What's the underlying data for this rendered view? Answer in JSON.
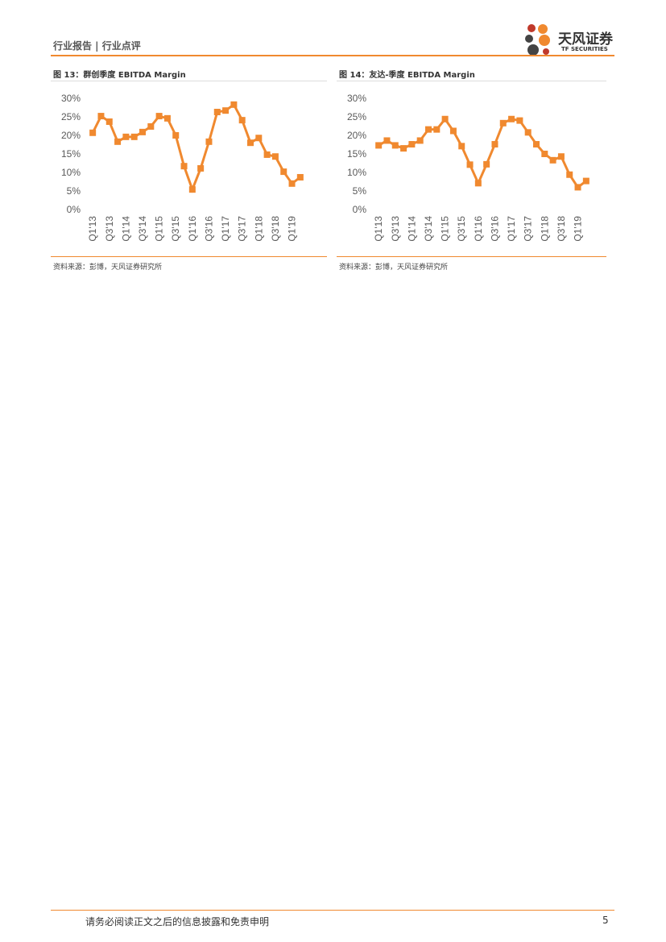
{
  "header": {
    "title": "行业报告 | 行业点评",
    "logo": "天风证券",
    "logo_en": "TF SECURITIES"
  },
  "chart_data": [
    {
      "type": "line",
      "title": "图 13：群创季度 EBITDA Margin",
      "source": "资料来源：彭博，天风证券研究所",
      "categories": [
        "Q1'13",
        null,
        "Q3'13",
        null,
        "Q1'14",
        null,
        "Q3'14",
        null,
        "Q1'15",
        null,
        "Q3'15",
        null,
        "Q1'16",
        null,
        "Q3'16",
        null,
        "Q1'17",
        null,
        "Q3'17",
        null,
        "Q1'18",
        null,
        "Q3'18",
        null,
        "Q1'19",
        null
      ],
      "values": [
        20.7,
        25.2,
        23.7,
        18.3,
        19.6,
        19.6,
        20.9,
        22.4,
        25.2,
        24.6,
        20.0,
        11.7,
        5.4,
        11.1,
        18.3,
        26.3,
        26.7,
        28.3,
        24.1,
        18.0,
        19.3,
        14.8,
        14.3,
        10.2,
        7.0,
        8.7
      ],
      "color": "#f0892f",
      "ylim": [
        0,
        30
      ],
      "yticks": [
        {
          "value": 0,
          "label": "0%"
        },
        {
          "value": 5,
          "label": "5%"
        },
        {
          "value": 10,
          "label": "10%"
        },
        {
          "value": 15,
          "label": "15%"
        },
        {
          "value": 20,
          "label": "20%"
        },
        {
          "value": 25,
          "label": "25%"
        },
        {
          "value": 30,
          "label": "30%"
        }
      ]
    },
    {
      "type": "line",
      "title": "图 14：友达-季度 EBITDA Margin",
      "source": "资料来源：彭博，天风证券研究所",
      "categories": [
        "Q1'13",
        null,
        "Q3'13",
        null,
        "Q1'14",
        null,
        "Q3'14",
        null,
        "Q1'15",
        null,
        "Q3'15",
        null,
        "Q1'16",
        null,
        "Q3'16",
        null,
        "Q1'17",
        null,
        "Q3'17",
        null,
        "Q1'18",
        null,
        "Q3'18",
        null,
        "Q1'19",
        null
      ],
      "values": [
        17.3,
        18.6,
        17.3,
        16.5,
        17.6,
        18.6,
        21.6,
        21.6,
        24.4,
        21.2,
        17.1,
        12.1,
        7.1,
        12.2,
        17.6,
        23.3,
        24.4,
        24.0,
        20.8,
        17.6,
        15.0,
        13.3,
        14.3,
        9.4,
        6.0,
        7.7
      ],
      "color": "#f0892f",
      "ylim": [
        0,
        30
      ],
      "yticks": [
        {
          "value": 0,
          "label": "0%"
        },
        {
          "value": 5,
          "label": "5%"
        },
        {
          "value": 10,
          "label": "10%"
        },
        {
          "value": 15,
          "label": "15%"
        },
        {
          "value": 20,
          "label": "20%"
        },
        {
          "value": 25,
          "label": "25%"
        },
        {
          "value": 30,
          "label": "30%"
        }
      ]
    }
  ],
  "footer": {
    "disclaimer": "请务必阅读正文之后的信息披露和免责申明",
    "page": "5"
  }
}
